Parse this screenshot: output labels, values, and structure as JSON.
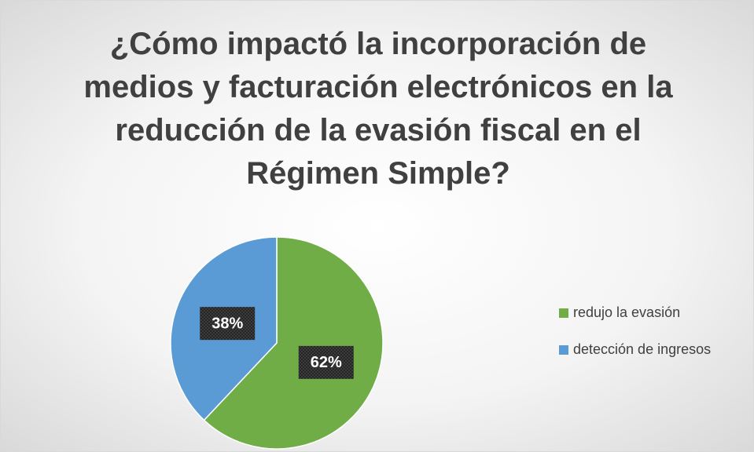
{
  "chart_data": {
    "type": "pie",
    "title": "¿Cómo impactó la incorporación de medios y facturación electrónicos en la reducción de la evasión fiscal en el Régimen Simple?",
    "categories": [
      "redujo la evasión",
      "detección de ingresos"
    ],
    "values": [
      62,
      38
    ],
    "value_labels": [
      "62%",
      "38%"
    ],
    "colors": [
      "#70ad47",
      "#5b9bd5"
    ],
    "legend": "right"
  }
}
